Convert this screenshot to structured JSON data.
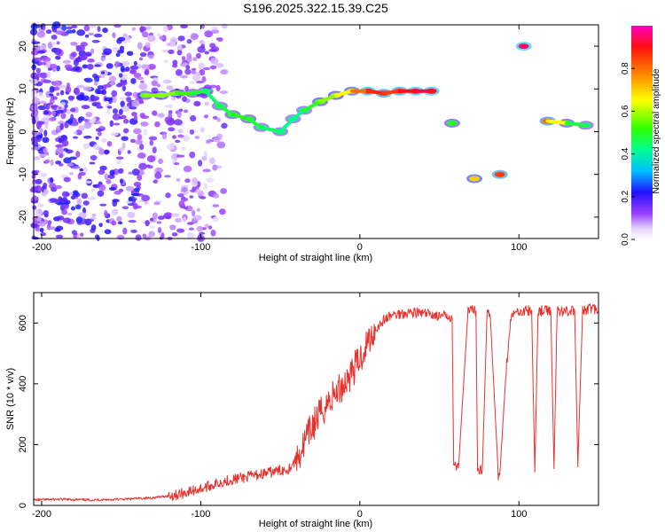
{
  "title": "S196.2025.322.15.39.C25",
  "chart_data": [
    {
      "type": "heatmap",
      "xlabel": "Height of straight line (km)",
      "ylabel": "Frequency (Hz)",
      "xlim": [
        -205,
        150
      ],
      "ylim": [
        -25,
        25
      ],
      "x_ticks": [
        "-200",
        "-100",
        "0",
        "100"
      ],
      "x_tick_values": [
        -200,
        -100,
        0,
        100
      ],
      "y_ticks": [
        "20",
        "10",
        "0",
        "-10",
        "-20"
      ],
      "y_tick_values": [
        20,
        10,
        0,
        -10,
        -20
      ],
      "colorbar": {
        "label": "Normalized spectral amplitude",
        "ticks": [
          "0.0",
          "0.2",
          "0.4",
          "0.6",
          "0.8"
        ],
        "tick_values": [
          0.0,
          0.2,
          0.4,
          0.6,
          0.8
        ],
        "range": [
          0,
          1
        ]
      },
      "ridge": [
        {
          "x": -135,
          "y": 8.5,
          "a": 0.55
        },
        {
          "x": -125,
          "y": 8.5,
          "a": 0.6
        },
        {
          "x": -115,
          "y": 9,
          "a": 0.55
        },
        {
          "x": -105,
          "y": 9,
          "a": 0.5
        },
        {
          "x": -97,
          "y": 9.5,
          "a": 0.45
        },
        {
          "x": -88,
          "y": 6,
          "a": 0.45
        },
        {
          "x": -80,
          "y": 4,
          "a": 0.5
        },
        {
          "x": -70,
          "y": 3,
          "a": 0.5
        },
        {
          "x": -62,
          "y": 1,
          "a": 0.45
        },
        {
          "x": -50,
          "y": 0,
          "a": 0.45
        },
        {
          "x": -42,
          "y": 3,
          "a": 0.4
        },
        {
          "x": -35,
          "y": 5,
          "a": 0.45
        },
        {
          "x": -25,
          "y": 7,
          "a": 0.55
        },
        {
          "x": -15,
          "y": 8.5,
          "a": 0.6
        },
        {
          "x": -5,
          "y": 9.5,
          "a": 0.7
        },
        {
          "x": 5,
          "y": 9.5,
          "a": 0.9
        },
        {
          "x": 15,
          "y": 9,
          "a": 0.85
        },
        {
          "x": 25,
          "y": 9.5,
          "a": 0.85
        },
        {
          "x": 35,
          "y": 9.5,
          "a": 0.95
        },
        {
          "x": 45,
          "y": 9.5,
          "a": 0.9
        },
        {
          "x": 58,
          "y": 2,
          "a": 0.5
        },
        {
          "x": 72,
          "y": -11,
          "a": 0.7
        },
        {
          "x": 88,
          "y": -10,
          "a": 0.85
        },
        {
          "x": 103,
          "y": 20,
          "a": 0.95
        },
        {
          "x": 118,
          "y": 2.5,
          "a": 0.8
        },
        {
          "x": 130,
          "y": 2,
          "a": 0.5
        },
        {
          "x": 142,
          "y": 1.5,
          "a": 0.45
        }
      ]
    },
    {
      "type": "line",
      "xlabel": "Height of straight line (km)",
      "ylabel": "SNR (10 * v/v)",
      "xlim": [
        -205,
        150
      ],
      "ylim": [
        0,
        700
      ],
      "x_ticks": [
        "-200",
        "-100",
        "0",
        "100"
      ],
      "x_tick_values": [
        -200,
        -100,
        0,
        100
      ],
      "y_ticks": [
        "600",
        "400",
        "200",
        "0"
      ],
      "y_tick_values": [
        600,
        400,
        200,
        0
      ],
      "series": [
        {
          "name": "SNR",
          "color": "#e8322e",
          "x": [
            -205,
            -190,
            -170,
            -150,
            -130,
            -115,
            -100,
            -85,
            -75,
            -65,
            -55,
            -45,
            -40,
            -35,
            -30,
            -25,
            -20,
            -15,
            -10,
            -5,
            0,
            5,
            10,
            15,
            20,
            25,
            30,
            35,
            40,
            45,
            50,
            55,
            58,
            59,
            62,
            68,
            73,
            74,
            77,
            80,
            82,
            87,
            88,
            92,
            95,
            100,
            108,
            110,
            112,
            120,
            122,
            124,
            130,
            135,
            137,
            140,
            145,
            150
          ],
          "values": [
            18,
            20,
            18,
            20,
            25,
            35,
            55,
            80,
            90,
            100,
            110,
            120,
            150,
            200,
            260,
            300,
            340,
            370,
            400,
            440,
            480,
            540,
            580,
            610,
            625,
            630,
            635,
            635,
            630,
            630,
            620,
            625,
            620,
            130,
            125,
            640,
            640,
            120,
            120,
            640,
            620,
            100,
            100,
            450,
            620,
            640,
            640,
            110,
            640,
            640,
            120,
            640,
            640,
            640,
            130,
            640,
            650,
            640
          ]
        }
      ]
    }
  ]
}
